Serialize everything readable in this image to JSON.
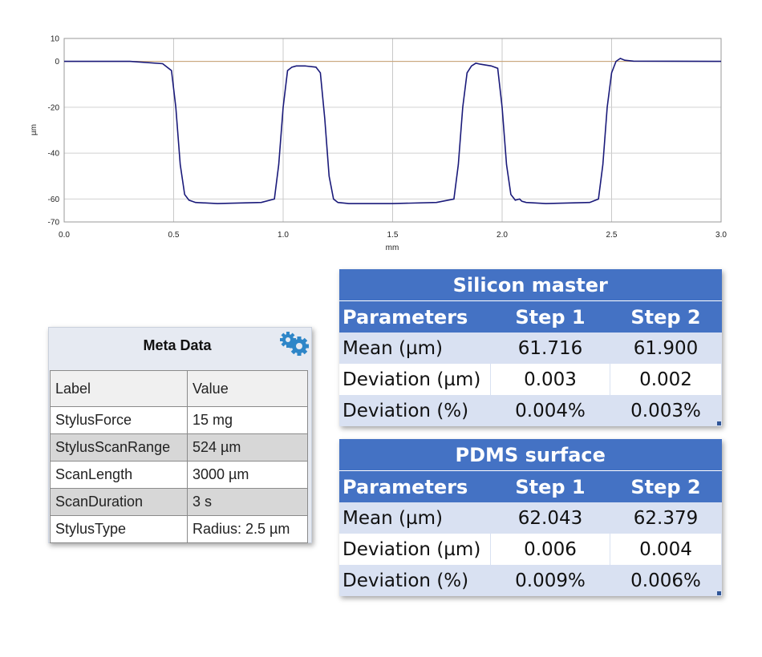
{
  "chart_data": {
    "type": "line",
    "title": "",
    "xlabel": "mm",
    "ylabel": "µm",
    "xlim": [
      0.0,
      3.0
    ],
    "ylim": [
      -70,
      10
    ],
    "xticks": [
      "0.0",
      "0.5",
      "1.0",
      "1.5",
      "2.0",
      "2.5",
      "3.0"
    ],
    "yticks": [
      "10",
      "0",
      "-20",
      "-40",
      "-60",
      "-70"
    ],
    "grid": true,
    "reference_line": 0,
    "series": [
      {
        "color": "#1a1a7a",
        "x": [
          0.0,
          0.3,
          0.45,
          0.49,
          0.51,
          0.53,
          0.55,
          0.57,
          0.6,
          0.7,
          0.9,
          0.96,
          0.98,
          1.0,
          1.02,
          1.04,
          1.06,
          1.1,
          1.15,
          1.17,
          1.19,
          1.21,
          1.23,
          1.25,
          1.3,
          1.5,
          1.7,
          1.78,
          1.8,
          1.82,
          1.84,
          1.86,
          1.88,
          1.9,
          1.95,
          1.98,
          2.0,
          2.02,
          2.04,
          2.06,
          2.08,
          2.09,
          2.11,
          2.2,
          2.4,
          2.44,
          2.46,
          2.48,
          2.5,
          2.52,
          2.54,
          2.56,
          2.6,
          3.0
        ],
        "y": [
          0.0,
          0.0,
          -1.0,
          -4.0,
          -20.0,
          -45.0,
          -58.0,
          -60.5,
          -61.5,
          -62.0,
          -61.5,
          -60.0,
          -45.0,
          -20.0,
          -4.0,
          -2.5,
          -2.0,
          -2.0,
          -2.5,
          -5.0,
          -25.0,
          -50.0,
          -60.0,
          -61.5,
          -62.0,
          -62.0,
          -61.5,
          -60.0,
          -45.0,
          -20.0,
          -5.0,
          -2.0,
          -0.8,
          -1.2,
          -2.0,
          -3.0,
          -20.0,
          -45.0,
          -58.0,
          -60.5,
          -60.0,
          -61.0,
          -61.5,
          -62.0,
          -61.5,
          -60.0,
          -45.0,
          -20.0,
          -5.0,
          0.0,
          1.3,
          0.5,
          0.1,
          0.0
        ]
      }
    ]
  },
  "meta": {
    "title": "Meta Data",
    "header": {
      "label": "Label",
      "value": "Value"
    },
    "rows": [
      {
        "label": "StylusForce",
        "value": "15 mg"
      },
      {
        "label": "StylusScanRange",
        "value": "524 µm"
      },
      {
        "label": "ScanLength",
        "value": "3000 µm"
      },
      {
        "label": "ScanDuration",
        "value": "3 s"
      },
      {
        "label": "StylusType",
        "value": "Radius: 2.5 µm"
      }
    ]
  },
  "tables": [
    {
      "title": "Silicon master",
      "header": [
        "Parameters",
        "Step 1",
        "Step 2"
      ],
      "rows": [
        [
          "Mean (µm)",
          "61.716",
          "61.900"
        ],
        [
          "Deviation (µm)",
          "0.003",
          "0.002"
        ],
        [
          "Deviation (%)",
          "0.004%",
          "0.003%"
        ]
      ]
    },
    {
      "title": "PDMS surface",
      "header": [
        "Parameters",
        "Step 1",
        "Step 2"
      ],
      "rows": [
        [
          "Mean (µm)",
          "62.043",
          "62.379"
        ],
        [
          "Deviation (µm)",
          "0.006",
          "0.004"
        ],
        [
          "Deviation (%)",
          "0.009%",
          "0.006%"
        ]
      ]
    }
  ],
  "colors": {
    "accent": "#4472c4",
    "row_shade": "#d9e1f2",
    "trace": "#1a1a7a",
    "zero_line": "#c8a070"
  }
}
